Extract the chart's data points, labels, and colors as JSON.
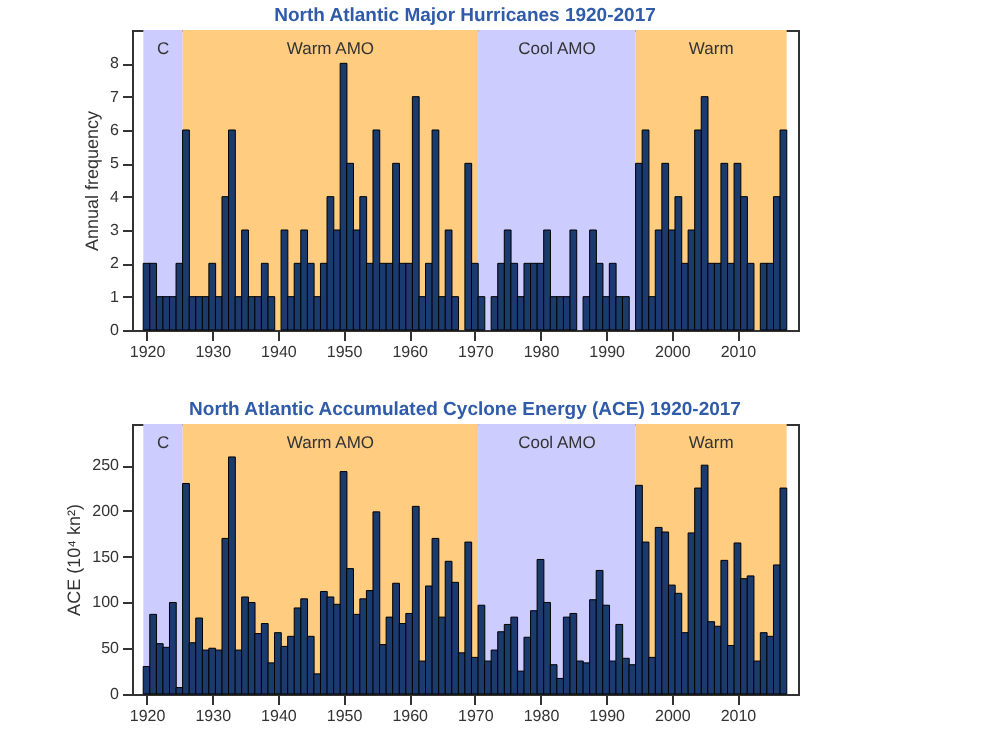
{
  "chart_data": [
    {
      "type": "bar",
      "title": "North Atlantic Major Hurricanes 1920-2017",
      "ylabel": "Annual frequency",
      "color": "#1b3a6e",
      "x": [
        1920,
        1921,
        1922,
        1923,
        1924,
        1925,
        1926,
        1927,
        1928,
        1929,
        1930,
        1931,
        1932,
        1933,
        1934,
        1935,
        1936,
        1937,
        1938,
        1939,
        1940,
        1941,
        1942,
        1943,
        1944,
        1945,
        1946,
        1947,
        1948,
        1949,
        1950,
        1951,
        1952,
        1953,
        1954,
        1955,
        1956,
        1957,
        1958,
        1959,
        1960,
        1961,
        1962,
        1963,
        1964,
        1965,
        1966,
        1967,
        1968,
        1969,
        1970,
        1971,
        1972,
        1973,
        1974,
        1975,
        1976,
        1977,
        1978,
        1979,
        1980,
        1981,
        1982,
        1983,
        1984,
        1985,
        1986,
        1987,
        1988,
        1989,
        1990,
        1991,
        1992,
        1993,
        1994,
        1995,
        1996,
        1997,
        1998,
        1999,
        2000,
        2001,
        2002,
        2003,
        2004,
        2005,
        2006,
        2007,
        2008,
        2009,
        2010,
        2011,
        2012,
        2013,
        2014,
        2015,
        2016,
        2017
      ],
      "values": [
        2,
        2,
        1,
        1,
        1,
        2,
        6,
        1,
        1,
        1,
        2,
        1,
        4,
        6,
        1,
        3,
        1,
        1,
        2,
        1,
        0,
        3,
        1,
        2,
        3,
        2,
        1,
        2,
        4,
        3,
        8,
        5,
        3,
        4,
        2,
        6,
        2,
        2,
        5,
        2,
        2,
        7,
        1,
        2,
        6,
        1,
        3,
        1,
        0,
        5,
        2,
        1,
        0,
        1,
        2,
        3,
        2,
        1,
        2,
        2,
        2,
        3,
        1,
        1,
        1,
        3,
        0,
        1,
        3,
        2,
        1,
        2,
        1,
        1,
        0,
        5,
        6,
        1,
        3,
        5,
        3,
        4,
        2,
        3,
        6,
        7,
        2,
        2,
        5,
        2,
        5,
        4,
        2,
        0,
        2,
        2,
        4,
        6
      ],
      "xlim": [
        1919.3,
        2017.7
      ],
      "ylim": [
        0,
        9
      ],
      "xticks": [
        1920,
        1930,
        1940,
        1950,
        1960,
        1970,
        1980,
        1990,
        2000,
        2010
      ],
      "yticks": [
        0,
        1,
        2,
        3,
        4,
        5,
        6,
        7,
        8
      ],
      "bands": [
        {
          "axis": "x",
          "from": 1919.5,
          "to": 1925.5,
          "label": "C",
          "color": "#ccccff"
        },
        {
          "axis": "x",
          "from": 1925.5,
          "to": 1970.5,
          "label": "Warm AMO",
          "color": "#ffcc80"
        },
        {
          "axis": "x",
          "from": 1970.5,
          "to": 1994.5,
          "label": "Cool AMO",
          "color": "#ccccff"
        },
        {
          "axis": "x",
          "from": 1994.5,
          "to": 2017.5,
          "label": "Warm",
          "color": "#ffcc80"
        }
      ]
    },
    {
      "type": "bar",
      "title": "North Atlantic Accumulated Cyclone Energy (ACE) 1920-2017",
      "ylabel": "ACE (10⁴ kn²)",
      "color": "#1b3a6e",
      "x": [
        1920,
        1921,
        1922,
        1923,
        1924,
        1925,
        1926,
        1927,
        1928,
        1929,
        1930,
        1931,
        1932,
        1933,
        1934,
        1935,
        1936,
        1937,
        1938,
        1939,
        1940,
        1941,
        1942,
        1943,
        1944,
        1945,
        1946,
        1947,
        1948,
        1949,
        1950,
        1951,
        1952,
        1953,
        1954,
        1955,
        1956,
        1957,
        1958,
        1959,
        1960,
        1961,
        1962,
        1963,
        1964,
        1965,
        1966,
        1967,
        1968,
        1969,
        1970,
        1971,
        1972,
        1973,
        1974,
        1975,
        1976,
        1977,
        1978,
        1979,
        1980,
        1981,
        1982,
        1983,
        1984,
        1985,
        1986,
        1987,
        1988,
        1989,
        1990,
        1991,
        1992,
        1993,
        1994,
        1995,
        1996,
        1997,
        1998,
        1999,
        2000,
        2001,
        2002,
        2003,
        2004,
        2005,
        2006,
        2007,
        2008,
        2009,
        2010,
        2011,
        2012,
        2013,
        2014,
        2015,
        2016,
        2017
      ],
      "values": [
        30,
        87,
        55,
        51,
        100,
        7,
        230,
        56,
        83,
        48,
        50,
        48,
        170,
        259,
        48,
        106,
        100,
        66,
        77,
        34,
        67,
        52,
        63,
        94,
        104,
        63,
        22,
        112,
        106,
        98,
        243,
        137,
        87,
        104,
        113,
        199,
        54,
        84,
        121,
        77,
        88,
        205,
        36,
        118,
        170,
        84,
        145,
        122,
        45,
        166,
        40,
        97,
        36,
        48,
        68,
        76,
        84,
        25,
        62,
        91,
        147,
        100,
        32,
        17,
        84,
        88,
        36,
        34,
        103,
        135,
        97,
        36,
        76,
        39,
        32,
        228,
        166,
        40,
        182,
        177,
        119,
        110,
        67,
        176,
        225,
        250,
        79,
        74,
        146,
        53,
        165,
        126,
        129,
        36,
        67,
        63,
        141,
        225
      ],
      "xlim": [
        1919.3,
        2017.7
      ],
      "ylim": [
        0,
        295
      ],
      "xticks": [
        1920,
        1930,
        1940,
        1950,
        1960,
        1970,
        1980,
        1990,
        2000,
        2010
      ],
      "yticks": [
        0,
        50,
        100,
        150,
        200,
        250
      ],
      "bands": [
        {
          "axis": "x",
          "from": 1919.5,
          "to": 1925.5,
          "label": "C",
          "color": "#ccccff"
        },
        {
          "axis": "x",
          "from": 1925.5,
          "to": 1970.5,
          "label": "Warm AMO",
          "color": "#ffcc80"
        },
        {
          "axis": "x",
          "from": 1970.5,
          "to": 1994.5,
          "label": "Cool AMO",
          "color": "#ccccff"
        },
        {
          "axis": "x",
          "from": 1994.5,
          "to": 2017.5,
          "label": "Warm",
          "color": "#ffcc80"
        }
      ]
    }
  ]
}
